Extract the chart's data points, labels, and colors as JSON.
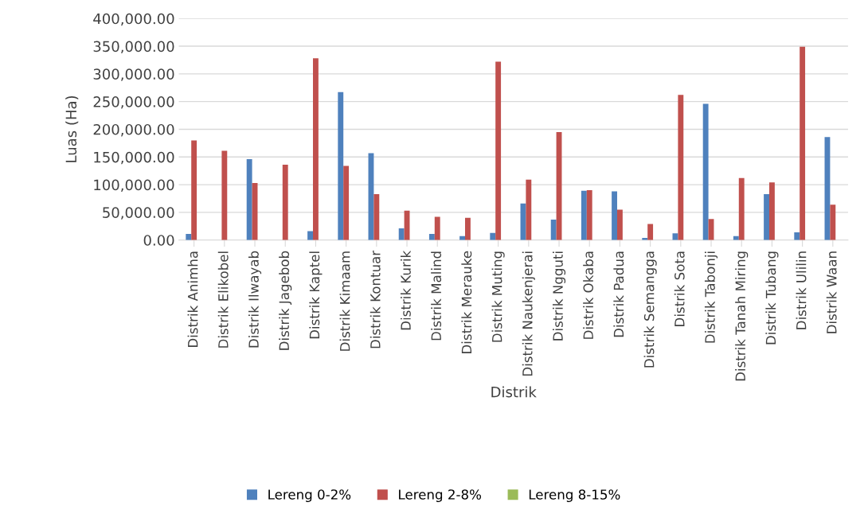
{
  "chart_data": {
    "type": "bar",
    "xlabel": "Distrik",
    "ylabel": "Luas (Ha)",
    "categories": [
      "Distrik Animha",
      "Distrik Elikobel",
      "Distrik Ilwayab",
      "Distrik Jagebob",
      "Distrik Kaptel",
      "Distrik Kimaam",
      "Distrik Kontuar",
      "Distrik Kurik",
      "Distrik Malind",
      "Distrik Merauke",
      "Distrik Muting",
      "Distrik Naukenjerai",
      "Distrik Ngguti",
      "Distrik Okaba",
      "Distrik Padua",
      "Distrik Semangga",
      "Distrik Sota",
      "Distrik Tabonji",
      "Distrik Tanah Miring",
      "Distrik Tubang",
      "Distrik Ulilin",
      "Distrik Waan"
    ],
    "series": [
      {
        "name": "Lereng 0-2%",
        "color": "#4f81bd",
        "values": [
          11000,
          null,
          146000,
          null,
          16000,
          267000,
          157000,
          21000,
          11000,
          7000,
          13000,
          66000,
          37000,
          89000,
          88000,
          4000,
          12000,
          246000,
          7000,
          83000,
          14000,
          186000
        ]
      },
      {
        "name": "Lereng 2-8%",
        "color": "#c0504d",
        "values": [
          180000,
          161000,
          103000,
          136000,
          328000,
          134000,
          83000,
          53000,
          42000,
          40000,
          322000,
          109000,
          195000,
          90000,
          55000,
          29000,
          262000,
          38000,
          112000,
          104000,
          349000,
          64000
        ]
      },
      {
        "name": "Lereng 8-15%",
        "color": "#9bbb59",
        "values": [
          null,
          null,
          null,
          null,
          null,
          null,
          null,
          null,
          null,
          null,
          null,
          null,
          null,
          null,
          null,
          null,
          null,
          null,
          null,
          null,
          null,
          null
        ]
      }
    ],
    "ylim": [
      0,
      400000
    ],
    "yticks": [
      {
        "value": 0,
        "label": "0.00"
      },
      {
        "value": 50000,
        "label": "50,000.00"
      },
      {
        "value": 100000,
        "label": "100,000.00"
      },
      {
        "value": 150000,
        "label": "150,000.00"
      },
      {
        "value": 200000,
        "label": "200,000.00"
      },
      {
        "value": 250000,
        "label": "250,000.00"
      },
      {
        "value": 300000,
        "label": "300,000.00"
      },
      {
        "value": 350000,
        "label": "350,000.00"
      },
      {
        "value": 400000,
        "label": "400,000.00"
      }
    ],
    "grid": "y",
    "legend": "bottom"
  }
}
